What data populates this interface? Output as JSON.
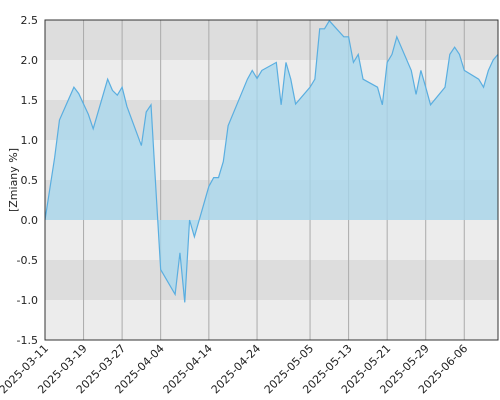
{
  "chart_data": {
    "type": "area",
    "ylabel": "[Zmiany %]",
    "ylim": [
      -1.5,
      2.5
    ],
    "yticks": [
      "2.5",
      "2.0",
      "1.5",
      "1.0",
      "0.5",
      "0.0",
      "-0.5",
      "-1.0",
      "-1.5"
    ],
    "xlim": [
      "2025-03-11",
      "2025-06-13"
    ],
    "xticks": [
      "2025-03-11",
      "2025-03-19",
      "2025-03-27",
      "2025-04-04",
      "2025-04-14",
      "2025-04-24",
      "2025-05-05",
      "2025-05-13",
      "2025-05-21",
      "2025-05-29",
      "2025-06-06"
    ],
    "grid": true,
    "legend": "none",
    "colors": {
      "fill": "#a6d7ee",
      "line": "#5aaee0",
      "band_dark": "#dddddd",
      "band_light": "#ececec",
      "grid": "#aaaaaa",
      "frame": "#333333"
    },
    "series": [
      {
        "x": [
          "2025-03-11",
          "2025-03-13",
          "2025-03-14",
          "2025-03-17",
          "2025-03-18",
          "2025-03-19",
          "2025-03-20",
          "2025-03-21",
          "2025-03-24",
          "2025-03-25",
          "2025-03-26",
          "2025-03-27",
          "2025-03-28",
          "2025-03-31",
          "2025-04-01",
          "2025-04-02",
          "2025-04-03",
          "2025-04-04",
          "2025-04-07",
          "2025-04-08",
          "2025-04-09",
          "2025-04-10",
          "2025-04-11",
          "2025-04-14",
          "2025-04-15",
          "2025-04-16",
          "2025-04-17",
          "2025-04-18",
          "2025-04-22",
          "2025-04-23",
          "2025-04-24",
          "2025-04-25",
          "2025-04-28",
          "2025-04-29",
          "2025-04-30",
          "2025-05-01",
          "2025-05-02",
          "2025-05-05",
          "2025-05-06",
          "2025-05-07",
          "2025-05-08",
          "2025-05-09",
          "2025-05-12",
          "2025-05-13",
          "2025-05-14",
          "2025-05-15",
          "2025-05-16",
          "2025-05-19",
          "2025-05-20",
          "2025-05-21",
          "2025-05-22",
          "2025-05-23",
          "2025-05-26",
          "2025-05-27",
          "2025-05-28",
          "2025-05-29",
          "2025-05-30",
          "2025-06-02",
          "2025-06-03",
          "2025-06-04",
          "2025-06-05",
          "2025-06-06",
          "2025-06-09",
          "2025-06-10",
          "2025-06-11",
          "2025-06-12",
          "2025-06-13"
        ],
        "values": [
          0.0,
          0.78,
          1.25,
          1.66,
          1.58,
          1.45,
          1.32,
          1.14,
          1.76,
          1.62,
          1.56,
          1.66,
          1.42,
          0.93,
          1.35,
          1.44,
          0.4,
          -0.62,
          -0.93,
          -0.41,
          -1.03,
          0.0,
          -0.21,
          0.42,
          0.53,
          0.53,
          0.73,
          1.18,
          1.76,
          1.87,
          1.77,
          1.87,
          1.97,
          1.44,
          1.97,
          1.76,
          1.45,
          1.66,
          1.76,
          2.39,
          2.39,
          2.49,
          2.29,
          2.29,
          1.97,
          2.07,
          1.76,
          1.66,
          1.44,
          1.97,
          2.07,
          2.29,
          1.87,
          1.57,
          1.87,
          1.66,
          1.44,
          1.66,
          2.07,
          2.16,
          2.07,
          1.87,
          1.76,
          1.66,
          1.87,
          2.0,
          2.07
        ]
      }
    ]
  }
}
